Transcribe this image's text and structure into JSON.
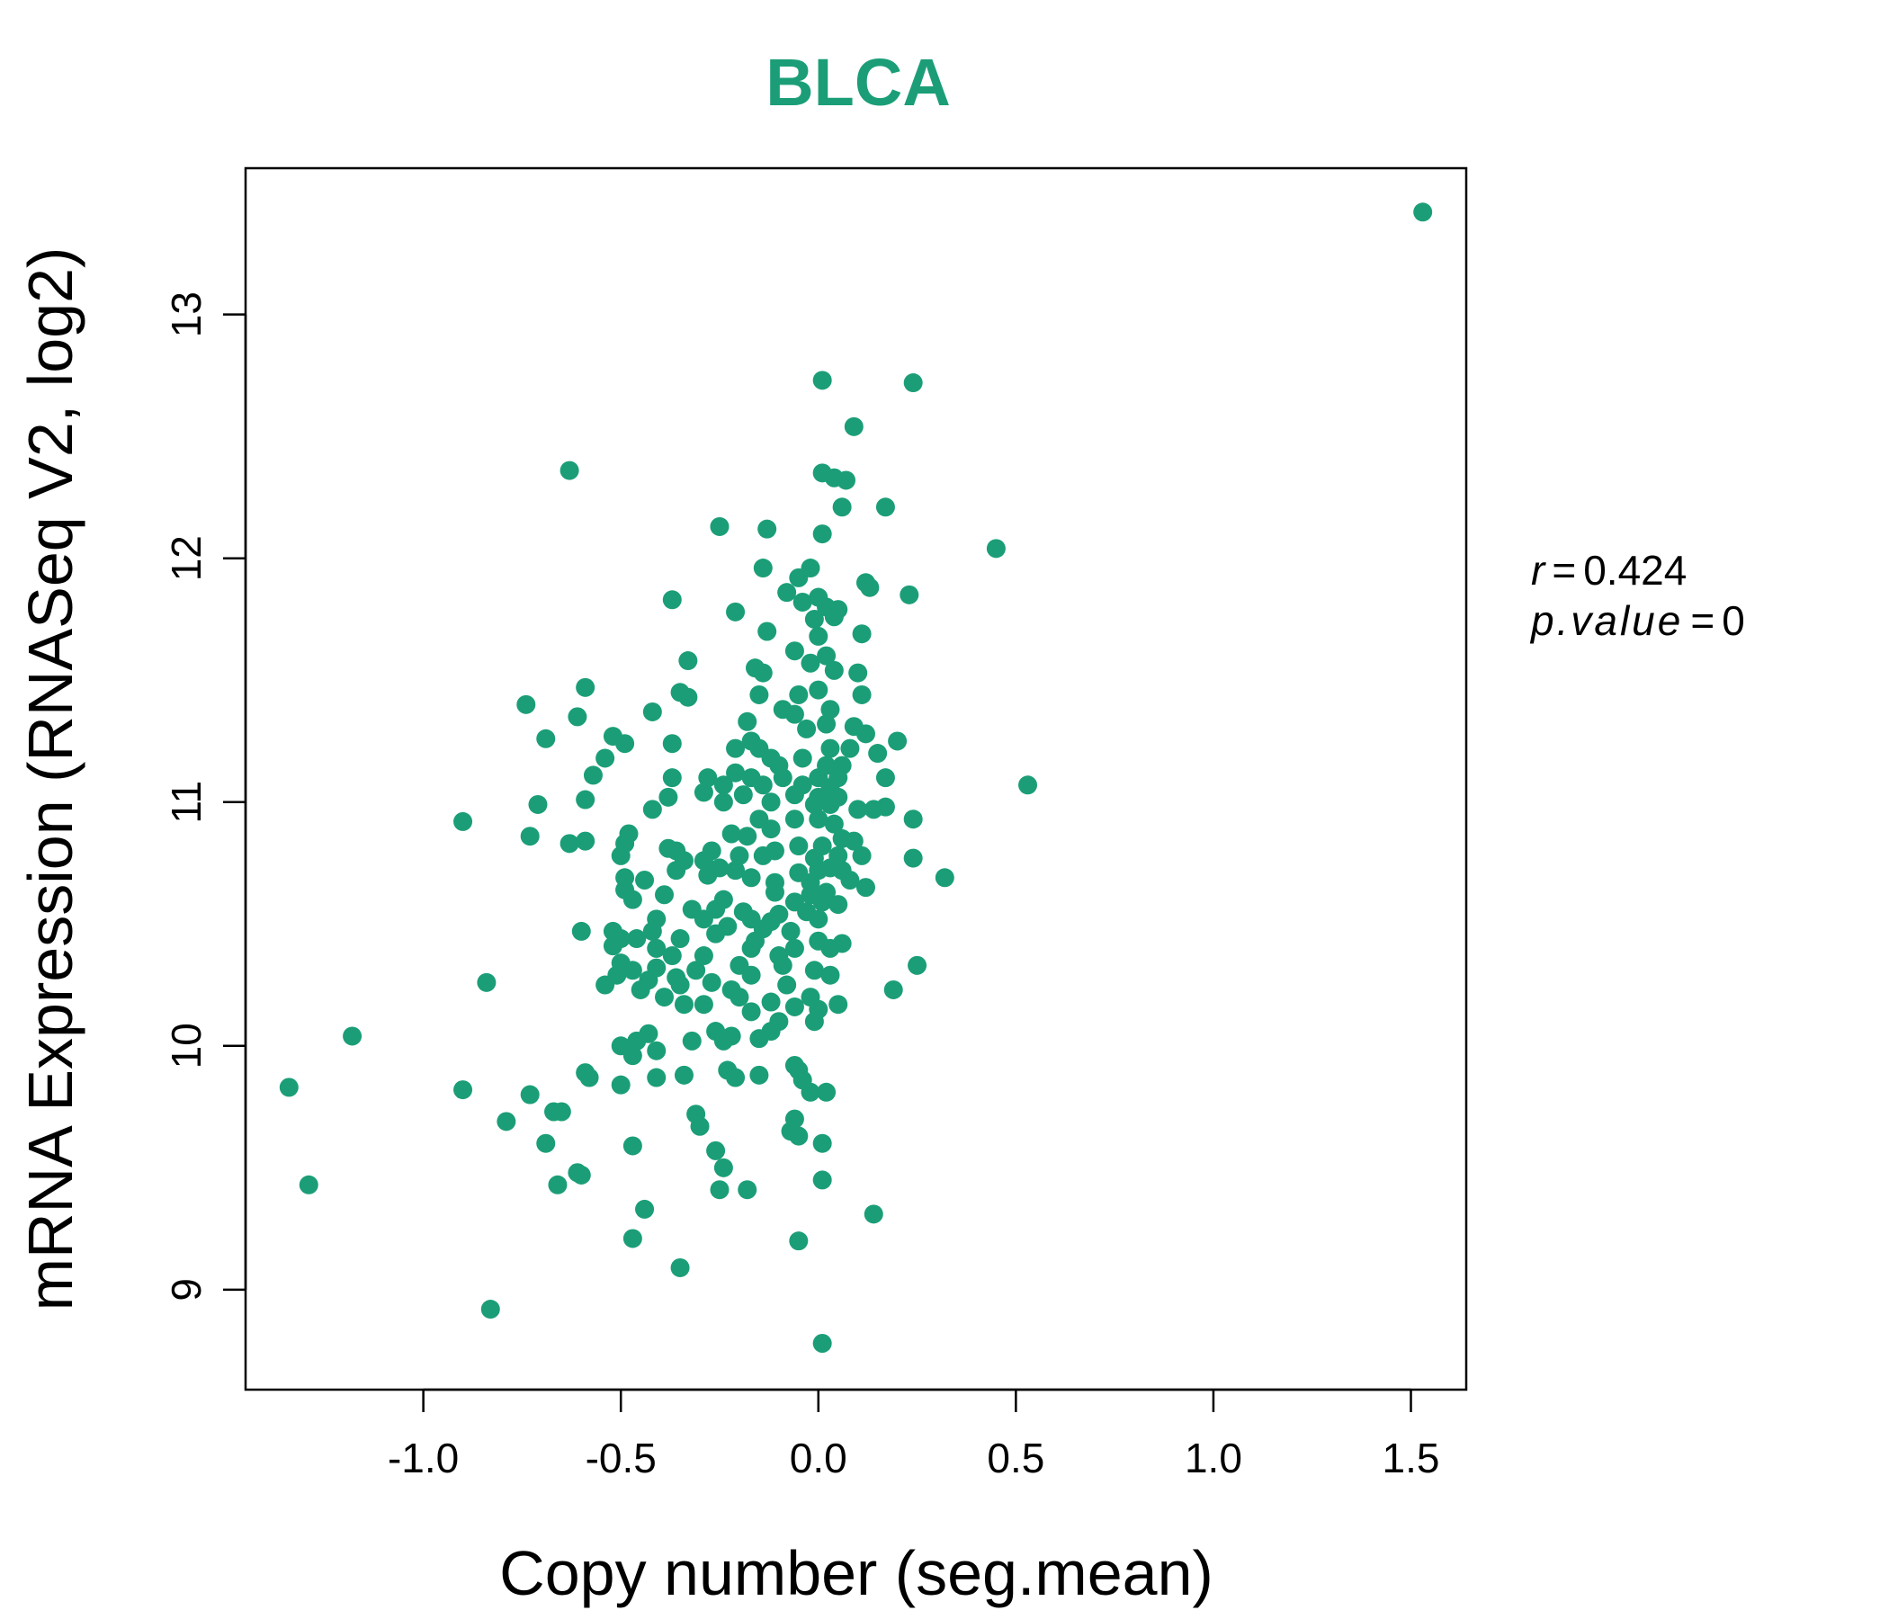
{
  "colors": {
    "accent": "#1b9e77",
    "axis": "#000000",
    "background": "#ffffff"
  },
  "stats": {
    "r_name": "r",
    "eq": "=",
    "r_value": "0.424",
    "p_name": "p.value",
    "p_value": "0"
  },
  "chart_data": {
    "type": "scatter",
    "title": "BLCA",
    "xlabel": "Copy number (seg.mean)",
    "ylabel": "mRNA Expression (RNASeq V2, log2)",
    "xlim": [
      -1.45,
      1.64
    ],
    "ylim": [
      8.59,
      13.6
    ],
    "xticks": [
      -1.0,
      -0.5,
      0.0,
      0.5,
      1.0,
      1.5
    ],
    "xtick_labels": [
      "-1.0",
      "-0.5",
      "0.0",
      "0.5",
      "1.0",
      "1.5"
    ],
    "yticks": [
      9,
      10,
      11,
      12,
      13
    ],
    "ytick_labels": [
      "9",
      "10",
      "11",
      "12",
      "13"
    ],
    "grid": false,
    "legend": "none",
    "points": [
      [
        1.53,
        13.42
      ],
      [
        0.01,
        12.73
      ],
      [
        0.24,
        12.72
      ],
      [
        0.09,
        12.54
      ],
      [
        -0.63,
        12.36
      ],
      [
        0.01,
        12.35
      ],
      [
        0.04,
        12.33
      ],
      [
        0.07,
        12.32
      ],
      [
        0.06,
        12.21
      ],
      [
        0.17,
        12.21
      ],
      [
        -0.25,
        12.13
      ],
      [
        -0.13,
        12.12
      ],
      [
        0.01,
        12.1
      ],
      [
        0.45,
        12.04
      ],
      [
        -0.14,
        11.96
      ],
      [
        -0.05,
        11.92
      ],
      [
        -0.02,
        11.96
      ],
      [
        0.12,
        11.9
      ],
      [
        0.13,
        11.88
      ],
      [
        0.23,
        11.85
      ],
      [
        -0.37,
        11.83
      ],
      [
        -0.08,
        11.86
      ],
      [
        -0.04,
        11.82
      ],
      [
        0.0,
        11.84
      ],
      [
        0.02,
        11.8
      ],
      [
        0.05,
        11.79
      ],
      [
        -0.21,
        11.78
      ],
      [
        -0.01,
        11.75
      ],
      [
        0.04,
        11.76
      ],
      [
        -0.13,
        11.7
      ],
      [
        0.11,
        11.69
      ],
      [
        0.0,
        11.68
      ],
      [
        -0.06,
        11.62
      ],
      [
        0.02,
        11.6
      ],
      [
        -0.33,
        11.58
      ],
      [
        -0.16,
        11.55
      ],
      [
        -0.02,
        11.57
      ],
      [
        0.04,
        11.54
      ],
      [
        0.1,
        11.53
      ],
      [
        -0.14,
        11.53
      ],
      [
        -0.59,
        11.47
      ],
      [
        -0.35,
        11.45
      ],
      [
        -0.33,
        11.43
      ],
      [
        -0.15,
        11.44
      ],
      [
        -0.05,
        11.44
      ],
      [
        0.0,
        11.46
      ],
      [
        0.11,
        11.44
      ],
      [
        -0.74,
        11.4
      ],
      [
        -0.42,
        11.37
      ],
      [
        -0.09,
        11.38
      ],
      [
        -0.61,
        11.35
      ],
      [
        -0.06,
        11.36
      ],
      [
        0.03,
        11.38
      ],
      [
        -0.18,
        11.33
      ],
      [
        -0.03,
        11.3
      ],
      [
        0.02,
        11.32
      ],
      [
        0.09,
        11.31
      ],
      [
        0.12,
        11.28
      ],
      [
        -0.52,
        11.27
      ],
      [
        -0.69,
        11.26
      ],
      [
        -0.49,
        11.24
      ],
      [
        -0.37,
        11.24
      ],
      [
        0.2,
        11.25
      ],
      [
        -0.17,
        11.25
      ],
      [
        -0.21,
        11.22
      ],
      [
        -0.15,
        11.22
      ],
      [
        0.03,
        11.22
      ],
      [
        0.08,
        11.22
      ],
      [
        0.15,
        11.2
      ],
      [
        -0.54,
        11.18
      ],
      [
        -0.12,
        11.18
      ],
      [
        -0.04,
        11.18
      ],
      [
        -0.1,
        11.15
      ],
      [
        0.02,
        11.15
      ],
      [
        0.06,
        11.15
      ],
      [
        -0.57,
        11.11
      ],
      [
        -0.37,
        11.1
      ],
      [
        -0.28,
        11.1
      ],
      [
        -0.21,
        11.12
      ],
      [
        -0.17,
        11.1
      ],
      [
        -0.09,
        11.1
      ],
      [
        0.0,
        11.1
      ],
      [
        0.05,
        11.1
      ],
      [
        0.17,
        11.1
      ],
      [
        -0.24,
        11.07
      ],
      [
        -0.14,
        11.07
      ],
      [
        -0.04,
        11.07
      ],
      [
        0.03,
        11.06
      ],
      [
        0.53,
        11.07
      ],
      [
        -0.29,
        11.04
      ],
      [
        -0.19,
        11.03
      ],
      [
        -0.06,
        11.03
      ],
      [
        0.0,
        11.02
      ],
      [
        0.05,
        11.02
      ],
      [
        -0.59,
        11.01
      ],
      [
        -0.38,
        11.02
      ],
      [
        -0.24,
        11.0
      ],
      [
        -0.12,
        11.0
      ],
      [
        -0.01,
        10.99
      ],
      [
        0.03,
        10.99
      ],
      [
        -0.71,
        10.99
      ],
      [
        -0.42,
        10.97
      ],
      [
        0.1,
        10.97
      ],
      [
        0.14,
        10.97
      ],
      [
        0.17,
        10.98
      ],
      [
        -0.9,
        10.92
      ],
      [
        0.24,
        10.93
      ],
      [
        -0.15,
        10.93
      ],
      [
        -0.06,
        10.93
      ],
      [
        0.0,
        10.93
      ],
      [
        0.04,
        10.91
      ],
      [
        -0.12,
        10.89
      ],
      [
        -0.48,
        10.87
      ],
      [
        -0.22,
        10.87
      ],
      [
        -0.18,
        10.86
      ],
      [
        -0.73,
        10.86
      ],
      [
        -0.63,
        10.83
      ],
      [
        -0.59,
        10.84
      ],
      [
        -0.49,
        10.83
      ],
      [
        -0.38,
        10.81
      ],
      [
        -0.36,
        10.8
      ],
      [
        -0.27,
        10.8
      ],
      [
        -0.11,
        10.8
      ],
      [
        -0.05,
        10.82
      ],
      [
        0.01,
        10.82
      ],
      [
        0.06,
        10.85
      ],
      [
        0.09,
        10.84
      ],
      [
        -0.5,
        10.78
      ],
      [
        -0.34,
        10.76
      ],
      [
        -0.29,
        10.76
      ],
      [
        -0.2,
        10.78
      ],
      [
        -0.14,
        10.78
      ],
      [
        -0.01,
        10.77
      ],
      [
        0.05,
        10.78
      ],
      [
        0.11,
        10.78
      ],
      [
        0.24,
        10.77
      ],
      [
        -0.36,
        10.72
      ],
      [
        -0.25,
        10.73
      ],
      [
        -0.21,
        10.72
      ],
      [
        -0.05,
        10.71
      ],
      [
        0.0,
        10.72
      ],
      [
        0.03,
        10.73
      ],
      [
        0.06,
        10.72
      ],
      [
        0.32,
        10.69
      ],
      [
        -0.49,
        10.69
      ],
      [
        -0.44,
        10.68
      ],
      [
        -0.28,
        10.7
      ],
      [
        -0.17,
        10.69
      ],
      [
        -0.11,
        10.67
      ],
      [
        -0.02,
        10.67
      ],
      [
        0.08,
        10.68
      ],
      [
        0.12,
        10.65
      ],
      [
        -0.49,
        10.64
      ],
      [
        -0.39,
        10.62
      ],
      [
        -0.11,
        10.63
      ],
      [
        -0.02,
        10.62
      ],
      [
        0.02,
        10.63
      ],
      [
        -0.47,
        10.6
      ],
      [
        -0.24,
        10.6
      ],
      [
        -0.06,
        10.59
      ],
      [
        0.01,
        10.59
      ],
      [
        0.05,
        10.58
      ],
      [
        -0.32,
        10.56
      ],
      [
        -0.26,
        10.56
      ],
      [
        -0.19,
        10.55
      ],
      [
        -0.1,
        10.54
      ],
      [
        -0.03,
        10.55
      ],
      [
        -0.41,
        10.52
      ],
      [
        -0.29,
        10.52
      ],
      [
        -0.17,
        10.52
      ],
      [
        -0.12,
        10.51
      ],
      [
        0.0,
        10.52
      ],
      [
        -0.23,
        10.49
      ],
      [
        -0.14,
        10.48
      ],
      [
        -0.6,
        10.47
      ],
      [
        -0.52,
        10.47
      ],
      [
        -0.42,
        10.47
      ],
      [
        -0.26,
        10.46
      ],
      [
        -0.07,
        10.47
      ],
      [
        -0.5,
        10.44
      ],
      [
        -0.46,
        10.44
      ],
      [
        -0.35,
        10.44
      ],
      [
        -0.16,
        10.43
      ],
      [
        0.0,
        10.43
      ],
      [
        0.06,
        10.42
      ],
      [
        -0.52,
        10.41
      ],
      [
        -0.41,
        10.4
      ],
      [
        -0.17,
        10.4
      ],
      [
        -0.06,
        10.4
      ],
      [
        0.03,
        10.4
      ],
      [
        -0.37,
        10.37
      ],
      [
        -0.29,
        10.37
      ],
      [
        -0.1,
        10.37
      ],
      [
        -0.5,
        10.34
      ],
      [
        -0.41,
        10.32
      ],
      [
        -0.2,
        10.33
      ],
      [
        -0.09,
        10.33
      ],
      [
        -0.47,
        10.31
      ],
      [
        -0.31,
        10.31
      ],
      [
        0.25,
        10.33
      ],
      [
        -0.51,
        10.29
      ],
      [
        -0.43,
        10.27
      ],
      [
        -0.36,
        10.28
      ],
      [
        -0.17,
        10.29
      ],
      [
        -0.01,
        10.31
      ],
      [
        0.03,
        10.29
      ],
      [
        -0.54,
        10.25
      ],
      [
        -0.45,
        10.23
      ],
      [
        -0.35,
        10.25
      ],
      [
        -0.27,
        10.26
      ],
      [
        -0.22,
        10.23
      ],
      [
        -0.08,
        10.25
      ],
      [
        0.19,
        10.23
      ],
      [
        -0.84,
        10.26
      ],
      [
        -0.39,
        10.2
      ],
      [
        -0.2,
        10.2
      ],
      [
        -0.12,
        10.18
      ],
      [
        -0.02,
        10.2
      ],
      [
        0.05,
        10.17
      ],
      [
        -0.34,
        10.17
      ],
      [
        -0.29,
        10.17
      ],
      [
        -0.17,
        10.14
      ],
      [
        -0.06,
        10.16
      ],
      [
        0.0,
        10.15
      ],
      [
        -0.1,
        10.1
      ],
      [
        -0.01,
        10.1
      ],
      [
        -1.18,
        10.04
      ],
      [
        -0.43,
        10.05
      ],
      [
        -0.26,
        10.06
      ],
      [
        -0.22,
        10.04
      ],
      [
        -0.12,
        10.06
      ],
      [
        -0.15,
        10.03
      ],
      [
        -0.5,
        10.0
      ],
      [
        -0.46,
        10.02
      ],
      [
        -0.41,
        9.98
      ],
      [
        -0.32,
        10.02
      ],
      [
        -0.24,
        10.02
      ],
      [
        -0.47,
        9.96
      ],
      [
        -0.23,
        9.9
      ],
      [
        -0.06,
        9.92
      ],
      [
        -0.59,
        9.89
      ],
      [
        -0.41,
        9.87
      ],
      [
        -0.34,
        9.88
      ],
      [
        -0.21,
        9.87
      ],
      [
        -0.05,
        9.9
      ],
      [
        -0.58,
        9.87
      ],
      [
        -0.15,
        9.88
      ],
      [
        -0.04,
        9.86
      ],
      [
        -0.5,
        9.84
      ],
      [
        -1.34,
        9.83
      ],
      [
        -0.9,
        9.82
      ],
      [
        -0.73,
        9.8
      ],
      [
        -0.02,
        9.81
      ],
      [
        0.02,
        9.81
      ],
      [
        -0.67,
        9.73
      ],
      [
        -0.31,
        9.72
      ],
      [
        -0.65,
        9.73
      ],
      [
        -0.79,
        9.69
      ],
      [
        -0.06,
        9.7
      ],
      [
        -0.3,
        9.67
      ],
      [
        -0.07,
        9.65
      ],
      [
        -0.05,
        9.63
      ],
      [
        -0.69,
        9.6
      ],
      [
        -0.47,
        9.59
      ],
      [
        0.01,
        9.6
      ],
      [
        -0.26,
        9.57
      ],
      [
        -0.24,
        9.5
      ],
      [
        -0.61,
        9.48
      ],
      [
        -0.6,
        9.47
      ],
      [
        -0.66,
        9.43
      ],
      [
        -1.29,
        9.43
      ],
      [
        -0.25,
        9.41
      ],
      [
        -0.18,
        9.41
      ],
      [
        0.01,
        9.45
      ],
      [
        -0.44,
        9.33
      ],
      [
        0.14,
        9.31
      ],
      [
        -0.47,
        9.21
      ],
      [
        -0.05,
        9.2
      ],
      [
        -0.35,
        9.09
      ],
      [
        -0.83,
        8.92
      ],
      [
        0.01,
        8.78
      ]
    ]
  }
}
